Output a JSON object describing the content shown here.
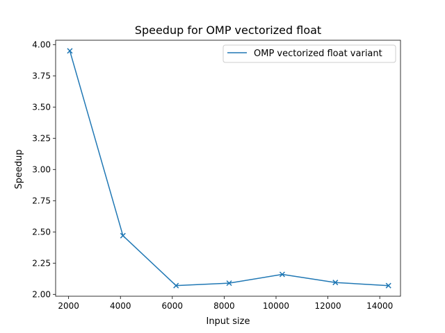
{
  "chart_data": {
    "type": "line",
    "title": "Speedup for OMP vectorized float",
    "xlabel": "Input size",
    "ylabel": "Speedup",
    "xlim": [
      1500,
      14800
    ],
    "ylim": [
      1.985,
      4.035
    ],
    "x_ticks": [
      2000,
      4000,
      6000,
      8000,
      10000,
      12000,
      14000
    ],
    "x_tick_labels": [
      "2000",
      "4000",
      "6000",
      "8000",
      "10000",
      "12000",
      "14000"
    ],
    "y_ticks": [
      2.0,
      2.25,
      2.5,
      2.75,
      3.0,
      3.25,
      3.5,
      3.75,
      4.0
    ],
    "y_tick_labels": [
      "2.00",
      "2.25",
      "2.50",
      "2.75",
      "3.00",
      "3.25",
      "3.50",
      "3.75",
      "4.00"
    ],
    "grid": false,
    "legend_position": "top-right",
    "series": [
      {
        "name": "OMP vectorized float variant",
        "color": "#1f77b4",
        "marker": "x",
        "x": [
          2048,
          4096,
          6144,
          8192,
          10240,
          12288,
          14336
        ],
        "y": [
          3.95,
          2.47,
          2.07,
          2.09,
          2.16,
          2.095,
          2.07
        ]
      }
    ]
  }
}
